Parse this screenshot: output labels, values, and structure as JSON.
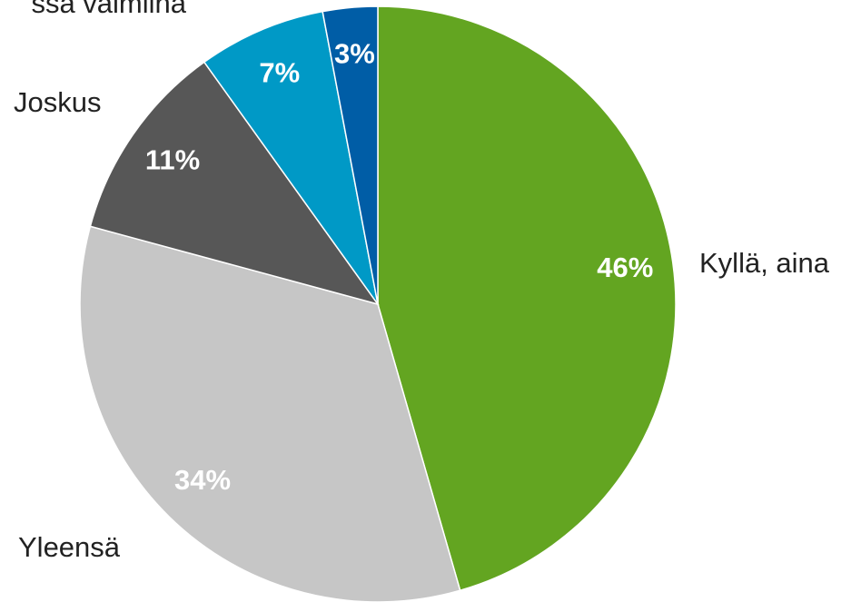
{
  "chart_data": {
    "type": "pie",
    "categories": [
      "Kyllä, aina",
      "Yleensä",
      "Joskus",
      "ssa valmiina",
      null
    ],
    "values": [
      46,
      34,
      11,
      7,
      3
    ],
    "value_labels": [
      "46%",
      "34%",
      "11%",
      "7%",
      "3%"
    ],
    "colors": [
      "#63a521",
      "#c6c6c6",
      "#575757",
      "#0099c6",
      "#005da6"
    ]
  }
}
